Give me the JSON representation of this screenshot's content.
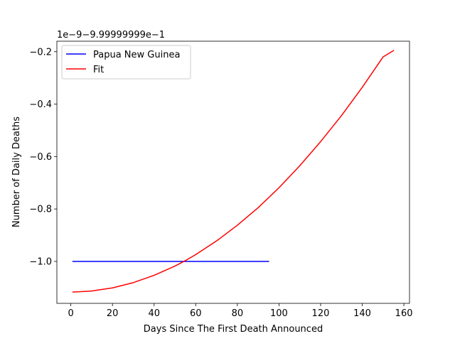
{
  "chart_data": {
    "type": "line",
    "title": "",
    "xlabel": "Days Since The First Death Announced",
    "ylabel": "Number of Daily Deaths",
    "y_offset_label": "1e−9−9.99999999e−1",
    "xlim": [
      -6.7,
      162.7
    ],
    "ylim": [
      -1.16,
      -0.16
    ],
    "x_ticks": [
      0,
      20,
      40,
      60,
      80,
      100,
      120,
      140,
      160
    ],
    "y_ticks": [
      -1.0,
      -0.8,
      -0.6,
      -0.4,
      -0.2
    ],
    "x_tick_labels": [
      "0",
      "20",
      "40",
      "60",
      "80",
      "100",
      "120",
      "140",
      "160"
    ],
    "y_tick_labels": [
      "−1.0",
      "−0.8",
      "−0.6",
      "−0.4",
      "−0.2"
    ],
    "grid": false,
    "legend_position": "top-left",
    "series": [
      {
        "name": "Papua New Guinea",
        "color": "#0000ff",
        "x": [
          1,
          95
        ],
        "y": [
          -1.0,
          -1.0
        ]
      },
      {
        "name": "Fit",
        "color": "#ff0000",
        "x": [
          1,
          10,
          20,
          30,
          40,
          50,
          55,
          60,
          70,
          80,
          90,
          100,
          110,
          120,
          130,
          140,
          150,
          155
        ],
        "y": [
          -1.117,
          -1.113,
          -1.101,
          -1.081,
          -1.053,
          -1.018,
          -0.997,
          -0.974,
          -0.922,
          -0.862,
          -0.795,
          -0.719,
          -0.635,
          -0.543,
          -0.444,
          -0.336,
          -0.22,
          -0.196
        ]
      }
    ]
  }
}
